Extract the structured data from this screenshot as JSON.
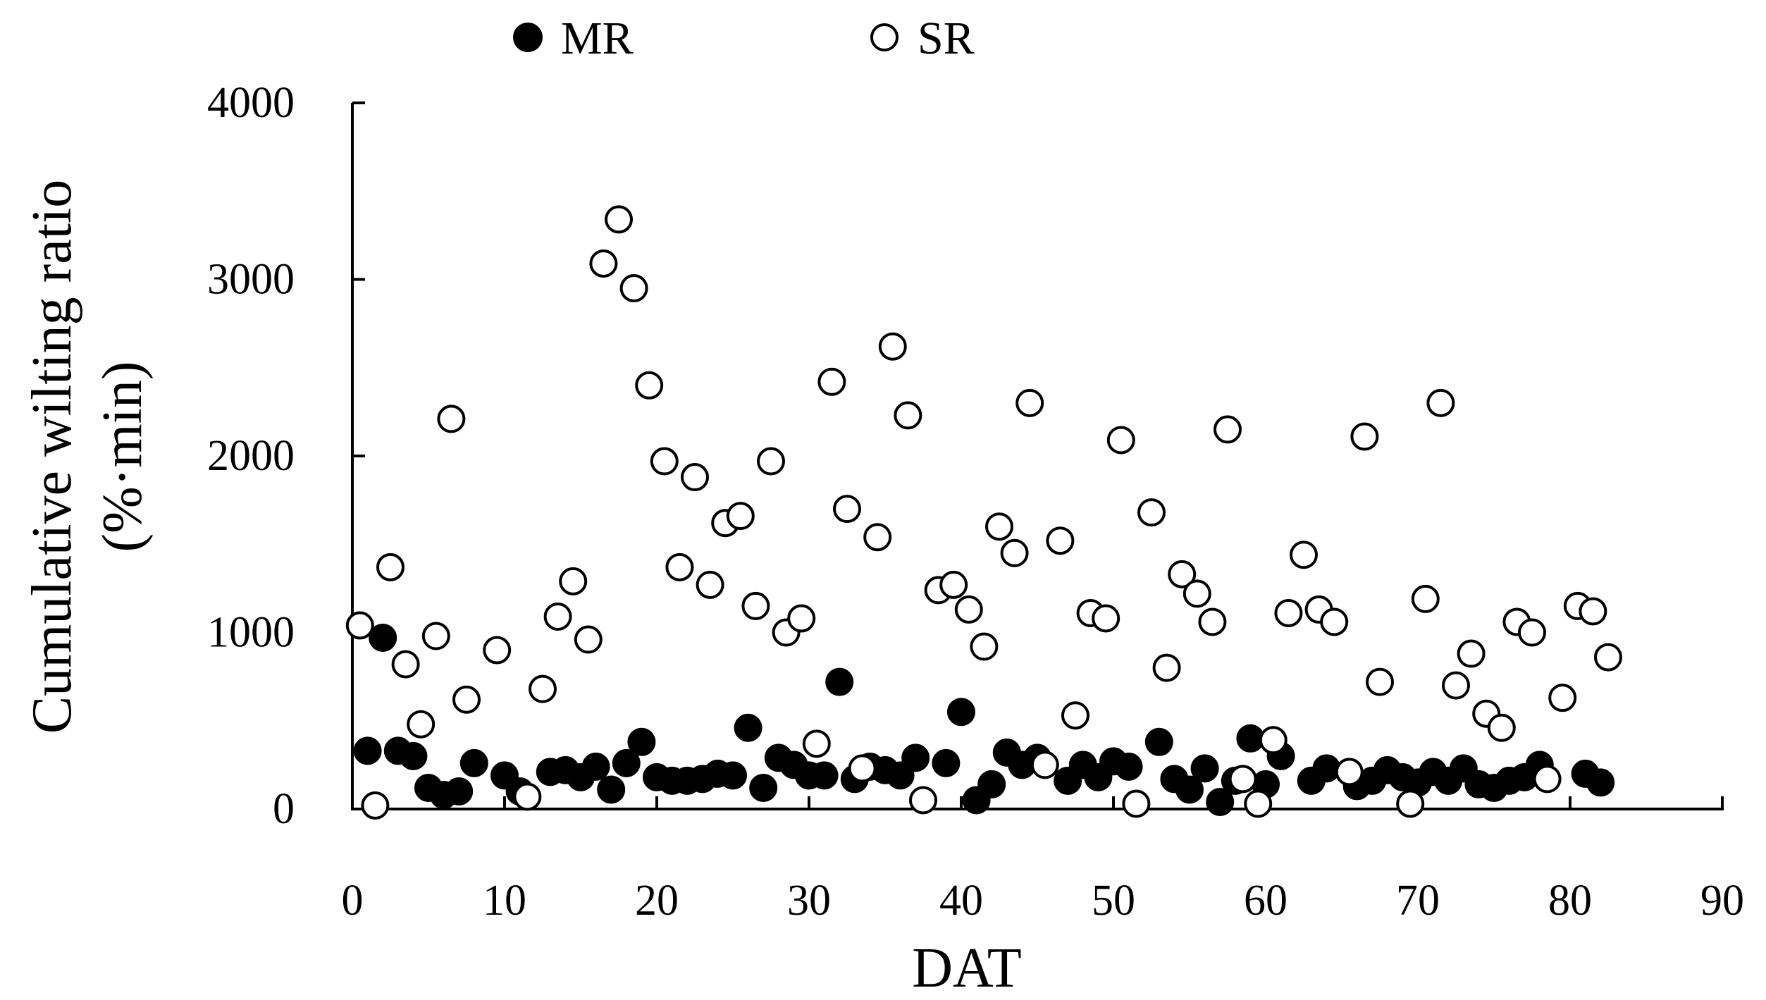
{
  "chart_data": {
    "type": "scatter",
    "title": "",
    "xlabel": "DAT",
    "ylabel_line1": "Cumulative wilting ratio",
    "ylabel_line2": "(%·min)",
    "xlim": [
      0,
      90
    ],
    "ylim": [
      0,
      4000
    ],
    "x_ticks": [
      0,
      10,
      20,
      30,
      40,
      50,
      60,
      70,
      80,
      90
    ],
    "y_ticks": [
      0,
      1000,
      2000,
      3000,
      4000
    ],
    "grid": false,
    "legend_position": "top",
    "series": [
      {
        "name": "MR",
        "marker": "filled-circle",
        "color": "#000000",
        "x": [
          1,
          2,
          3,
          4,
          5,
          6,
          7,
          8,
          10,
          11,
          13,
          14,
          15,
          16,
          17,
          18,
          19,
          20,
          21,
          22,
          23,
          24,
          25,
          26,
          27,
          28,
          29,
          30,
          31,
          32,
          33,
          34,
          35,
          36,
          37,
          39,
          40,
          41,
          42,
          43,
          44,
          45,
          47,
          48,
          49,
          50,
          51,
          53,
          54,
          55,
          56,
          57,
          58,
          59,
          60,
          61,
          63,
          64,
          66,
          67,
          68,
          69,
          70,
          71,
          72,
          73,
          74,
          75,
          76,
          77,
          78,
          81,
          82
        ],
        "y": [
          330,
          970,
          330,
          300,
          120,
          80,
          100,
          260,
          190,
          100,
          210,
          220,
          180,
          240,
          110,
          260,
          380,
          180,
          160,
          160,
          170,
          200,
          190,
          460,
          120,
          290,
          250,
          190,
          190,
          720,
          170,
          240,
          220,
          190,
          290,
          260,
          550,
          50,
          140,
          320,
          250,
          290,
          160,
          250,
          180,
          270,
          240,
          380,
          170,
          110,
          230,
          40,
          160,
          400,
          140,
          300,
          160,
          230,
          130,
          160,
          220,
          180,
          150,
          210,
          160,
          230,
          140,
          120,
          160,
          180,
          250,
          200,
          150
        ]
      },
      {
        "name": "SR",
        "marker": "open-circle",
        "color": "#000000",
        "x": [
          0.5,
          1.5,
          2.5,
          3.5,
          4.5,
          5.5,
          6.5,
          7.5,
          9.5,
          11.5,
          12.5,
          13.5,
          14.5,
          15.5,
          16.5,
          17.5,
          18.5,
          19.5,
          20.5,
          21.5,
          22.5,
          23.5,
          24.5,
          25.5,
          26.5,
          27.5,
          28.5,
          29.5,
          30.5,
          31.5,
          32.5,
          33.5,
          34.5,
          35.5,
          36.5,
          37.5,
          38.5,
          39.5,
          40.5,
          41.5,
          42.5,
          43.5,
          44.5,
          45.5,
          46.5,
          47.5,
          48.5,
          49.5,
          50.5,
          51.5,
          52.5,
          53.5,
          54.5,
          55.5,
          56.5,
          57.5,
          58.5,
          59.5,
          60.5,
          61.5,
          62.5,
          63.5,
          64.5,
          65.5,
          66.5,
          67.5,
          69.5,
          70.5,
          71.5,
          72.5,
          73.5,
          74.5,
          75.5,
          76.5,
          77.5,
          78.5,
          79.5,
          80.5,
          81.5,
          82.5
        ],
        "y": [
          1040,
          20,
          1370,
          820,
          480,
          980,
          2210,
          620,
          900,
          70,
          680,
          1090,
          1290,
          960,
          3090,
          3340,
          2950,
          2400,
          1970,
          1370,
          1880,
          1270,
          1620,
          1660,
          1150,
          1970,
          1000,
          1080,
          370,
          2420,
          1700,
          230,
          1540,
          2620,
          2230,
          50,
          1240,
          1270,
          1130,
          920,
          1600,
          1450,
          2300,
          250,
          1520,
          530,
          1110,
          1080,
          2090,
          30,
          1680,
          800,
          1330,
          1220,
          1060,
          2150,
          170,
          30,
          390,
          1110,
          1440,
          1130,
          1060,
          210,
          2110,
          720,
          30,
          1190,
          2300,
          700,
          880,
          540,
          460,
          1060,
          1000,
          170,
          630,
          1150,
          1120,
          860
        ]
      }
    ]
  }
}
